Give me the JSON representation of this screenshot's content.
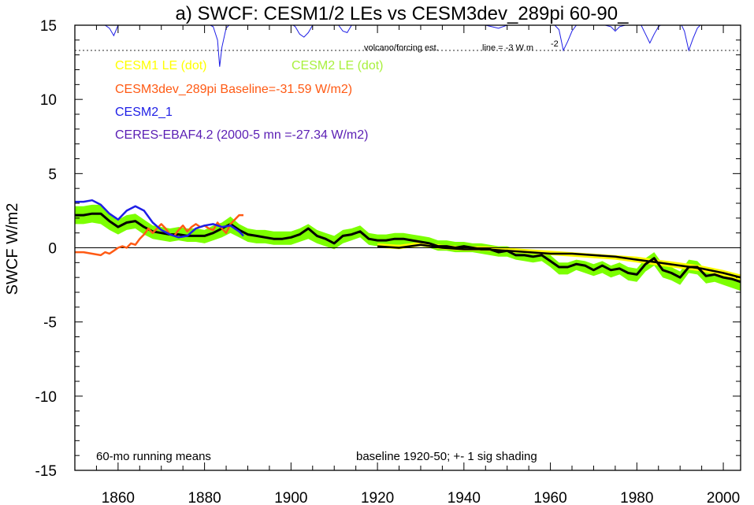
{
  "chart_data": {
    "type": "line",
    "title": "a) SWCF: CESM1/2 LEs vs CESM3dev_289pi 60-90_",
    "xlabel": "",
    "ylabel": "SWCF W/m2",
    "xlim": [
      1850,
      2004
    ],
    "ylim": [
      -15,
      15
    ],
    "xticks": [
      1860,
      1880,
      1900,
      1920,
      1940,
      1960,
      1980,
      2000
    ],
    "yticks": [
      -15,
      -10,
      -5,
      0,
      5,
      10,
      15
    ],
    "legend": [
      {
        "label": "CESM1 LE (dot)",
        "color": "#ffff00"
      },
      {
        "label": "CESM2 LE (dot)",
        "color": "#a8f03c"
      },
      {
        "label": "CESM3dev_289pi Baseline=-31.59 W/m2)",
        "color": "#ff5a14"
      },
      {
        "label": "CESM2_1",
        "color": "#1e1ee6"
      },
      {
        "label": "CERES-EBAF4.2 (2000-5 mn =-27.34 W/m2)",
        "color": "#5a1eb4"
      }
    ],
    "annotations": {
      "volcano_label": "volcano/forcing est.",
      "line_label": "line = -3 W m",
      "line_label_sup": "-2",
      "left_note": "60-mo running means",
      "right_note": "baseline 1920-50; +- 1 sig shading"
    },
    "series": [
      {
        "name": "CESM2 LE (dot)",
        "style": "band",
        "color": "#7cff00",
        "x": [
          1850,
          1852,
          1854,
          1856,
          1858,
          1860,
          1862,
          1864,
          1866,
          1868,
          1870,
          1872,
          1874,
          1876,
          1878,
          1880,
          1882,
          1884,
          1886,
          1888,
          1890,
          1892,
          1894,
          1896,
          1898,
          1900,
          1902,
          1904,
          1906,
          1908,
          1910,
          1912,
          1914,
          1916,
          1918,
          1920,
          1922,
          1924,
          1926,
          1928,
          1930,
          1932,
          1934,
          1936,
          1938,
          1940,
          1942,
          1944,
          1946,
          1948,
          1950,
          1952,
          1954,
          1956,
          1958,
          1960,
          1962,
          1964,
          1966,
          1968,
          1970,
          1972,
          1974,
          1976,
          1978,
          1980,
          1982,
          1984,
          1986,
          1988,
          1990,
          1992,
          1994,
          1996,
          1998,
          2000,
          2002,
          2004
        ],
        "lower": [
          1.6,
          1.6,
          1.7,
          1.6,
          1.2,
          0.9,
          1.2,
          1.3,
          0.9,
          0.6,
          0.5,
          0.4,
          0.5,
          0.4,
          0.4,
          0.3,
          0.5,
          0.7,
          1.0,
          0.7,
          0.4,
          0.3,
          0.3,
          0.2,
          0.2,
          0.2,
          0.4,
          0.6,
          0.3,
          0.1,
          -0.1,
          0.3,
          0.5,
          0.7,
          0.2,
          0.1,
          0.1,
          0.2,
          0.2,
          0.1,
          0.1,
          0.0,
          -0.2,
          -0.2,
          -0.3,
          -0.3,
          -0.3,
          -0.4,
          -0.5,
          -0.6,
          -0.6,
          -0.8,
          -0.9,
          -1.0,
          -0.9,
          -1.3,
          -1.8,
          -1.8,
          -1.5,
          -1.7,
          -1.9,
          -1.7,
          -2.0,
          -1.8,
          -2.2,
          -2.3,
          -1.6,
          -1.2,
          -2.0,
          -2.2,
          -2.5,
          -1.7,
          -1.8,
          -2.4,
          -2.3,
          -2.5,
          -2.7,
          -2.9
        ],
        "upper": [
          2.8,
          2.8,
          2.9,
          2.9,
          2.3,
          1.9,
          2.2,
          2.3,
          1.9,
          1.5,
          1.4,
          1.3,
          1.4,
          1.3,
          1.3,
          1.2,
          1.5,
          1.7,
          2.1,
          1.6,
          1.3,
          1.2,
          1.2,
          1.1,
          1.1,
          1.1,
          1.3,
          1.6,
          1.2,
          1.0,
          0.8,
          1.2,
          1.3,
          1.5,
          1.0,
          0.9,
          0.9,
          1.0,
          1.0,
          0.9,
          0.8,
          0.7,
          0.5,
          0.5,
          0.4,
          0.4,
          0.3,
          0.3,
          0.2,
          0.1,
          0.1,
          -0.1,
          -0.2,
          -0.3,
          -0.2,
          -0.5,
          -1.0,
          -1.0,
          -0.8,
          -0.9,
          -1.1,
          -0.9,
          -1.2,
          -1.0,
          -1.3,
          -1.4,
          -0.7,
          -0.3,
          -1.1,
          -1.3,
          -1.6,
          -0.8,
          -0.9,
          -1.5,
          -1.4,
          -1.6,
          -1.8,
          -2.0
        ]
      },
      {
        "name": "CESM1 LE (dot)",
        "style": "band",
        "color": "#ffff00",
        "x": [
          1920,
          1925,
          1930,
          1935,
          1940,
          1945,
          1950,
          1955,
          1960,
          1965,
          1970,
          1975,
          1980,
          1985,
          1990,
          1995,
          2000,
          2004
        ],
        "lower": [
          0.0,
          -0.1,
          0.1,
          -0.1,
          -0.2,
          -0.2,
          -0.3,
          -0.4,
          -0.5,
          -0.6,
          -0.7,
          -0.8,
          -1.0,
          -1.2,
          -1.4,
          -1.6,
          -1.9,
          -2.2
        ],
        "upper": [
          0.3,
          0.2,
          0.4,
          0.2,
          0.1,
          0.1,
          0.0,
          -0.1,
          -0.2,
          -0.3,
          -0.4,
          -0.5,
          -0.6,
          -0.8,
          -1.0,
          -1.2,
          -1.5,
          -1.8
        ]
      },
      {
        "name": "CESM1 LE mean",
        "style": "line",
        "color": "#000000",
        "width": 2.5,
        "x": [
          1920,
          1925,
          1930,
          1935,
          1940,
          1945,
          1950,
          1955,
          1960,
          1965,
          1970,
          1975,
          1980,
          1985,
          1990,
          1995,
          2000,
          2004
        ],
        "y": [
          0.1,
          0.0,
          0.2,
          0.0,
          -0.1,
          -0.1,
          -0.2,
          -0.3,
          -0.4,
          -0.4,
          -0.5,
          -0.6,
          -0.8,
          -1.0,
          -1.2,
          -1.4,
          -1.7,
          -2.0
        ]
      },
      {
        "name": "CESM2 LE mean",
        "style": "line",
        "color": "#000000",
        "width": 3,
        "x": [
          1850,
          1852,
          1854,
          1856,
          1858,
          1860,
          1862,
          1864,
          1866,
          1868,
          1870,
          1872,
          1874,
          1876,
          1878,
          1880,
          1882,
          1884,
          1886,
          1888,
          1890,
          1892,
          1894,
          1896,
          1898,
          1900,
          1902,
          1904,
          1906,
          1908,
          1910,
          1912,
          1914,
          1916,
          1918,
          1920,
          1922,
          1924,
          1926,
          1928,
          1930,
          1932,
          1934,
          1936,
          1938,
          1940,
          1942,
          1944,
          1946,
          1948,
          1950,
          1952,
          1954,
          1956,
          1958,
          1960,
          1962,
          1964,
          1966,
          1968,
          1970,
          1972,
          1974,
          1976,
          1978,
          1980,
          1982,
          1984,
          1986,
          1988,
          1990,
          1992,
          1994,
          1996,
          1998,
          2000,
          2002,
          2004
        ],
        "y": [
          2.2,
          2.2,
          2.3,
          2.3,
          1.8,
          1.4,
          1.7,
          1.8,
          1.4,
          1.1,
          1.0,
          0.9,
          0.9,
          0.8,
          0.8,
          0.8,
          1.0,
          1.3,
          1.6,
          1.2,
          0.9,
          0.8,
          0.7,
          0.6,
          0.6,
          0.7,
          0.9,
          1.3,
          0.8,
          0.6,
          0.3,
          0.8,
          0.9,
          1.1,
          0.6,
          0.5,
          0.5,
          0.6,
          0.6,
          0.5,
          0.4,
          0.3,
          0.1,
          0.1,
          0.0,
          0.1,
          0.0,
          -0.1,
          -0.1,
          -0.3,
          -0.2,
          -0.5,
          -0.5,
          -0.6,
          -0.5,
          -0.9,
          -1.3,
          -1.3,
          -1.1,
          -1.2,
          -1.5,
          -1.2,
          -1.5,
          -1.4,
          -1.7,
          -1.8,
          -1.1,
          -0.7,
          -1.5,
          -1.7,
          -2.0,
          -1.3,
          -1.3,
          -1.9,
          -1.8,
          -2.0,
          -2.1,
          -2.3
        ]
      },
      {
        "name": "CESM3dev_289pi Baseline=-31.59 W/m2)",
        "style": "line",
        "color": "#ff5a14",
        "width": 2.5,
        "x": [
          1850,
          1852,
          1854,
          1856,
          1857,
          1858,
          1859,
          1860,
          1861,
          1862,
          1863,
          1864,
          1865,
          1866,
          1867,
          1868,
          1869,
          1870,
          1871,
          1872,
          1873,
          1874,
          1875,
          1876,
          1877,
          1878,
          1879,
          1880,
          1881,
          1882,
          1883,
          1884,
          1885,
          1886,
          1887,
          1888,
          1889
        ],
        "y": [
          -0.3,
          -0.3,
          -0.4,
          -0.5,
          -0.3,
          -0.4,
          -0.2,
          0.0,
          0.1,
          0.0,
          0.3,
          0.2,
          0.6,
          0.9,
          1.3,
          1.0,
          1.3,
          1.6,
          1.3,
          0.9,
          0.8,
          1.2,
          1.5,
          1.1,
          1.4,
          1.6,
          1.4,
          1.5,
          1.3,
          1.2,
          1.7,
          1.3,
          1.0,
          1.6,
          1.9,
          2.2,
          2.2
        ]
      },
      {
        "name": "CESM2_1",
        "style": "line",
        "color": "#1e1ee6",
        "width": 2.5,
        "x": [
          1850,
          1852,
          1854,
          1856,
          1858,
          1860,
          1862,
          1864,
          1866,
          1868,
          1870,
          1872,
          1874,
          1876,
          1878,
          1880,
          1882,
          1884,
          1886,
          1888,
          1889
        ],
        "y": [
          3.1,
          3.1,
          3.2,
          2.9,
          2.3,
          1.9,
          2.5,
          2.8,
          2.5,
          1.7,
          1.2,
          0.9,
          0.7,
          0.8,
          1.3,
          1.5,
          1.6,
          1.4,
          1.5,
          1.1,
          0.8
        ]
      }
    ],
    "forcing_trace": {
      "name": "volcano/forcing est.",
      "color": "#1e1ee6",
      "baseline_y": 15.2,
      "x": [
        1850,
        1855,
        1857,
        1858,
        1859,
        1860,
        1865,
        1870,
        1875,
        1880,
        1882,
        1883,
        1883.5,
        1884,
        1885,
        1886,
        1890,
        1900,
        1901,
        1902,
        1903,
        1904,
        1905,
        1910,
        1911,
        1912,
        1913,
        1914,
        1920,
        1930,
        1935,
        1940,
        1945,
        1948,
        1950,
        1955,
        1960,
        1961,
        1962,
        1963,
        1964,
        1965,
        1966,
        1970,
        1974,
        1975,
        1976,
        1980,
        1981,
        1982,
        1983,
        1984,
        1985,
        1986,
        1990,
        1991,
        1992,
        1993,
        1994,
        1995,
        2000,
        2004
      ],
      "y": [
        15.2,
        15.2,
        15.0,
        14.8,
        14.3,
        15.0,
        15.1,
        15.2,
        15.1,
        15.2,
        14.9,
        14.0,
        12.2,
        13.5,
        14.8,
        15.1,
        15.2,
        15.1,
        14.9,
        14.4,
        14.2,
        14.5,
        15.0,
        15.2,
        15.0,
        14.6,
        14.5,
        15.0,
        15.2,
        15.2,
        15.1,
        15.2,
        15.0,
        14.8,
        15.0,
        15.2,
        15.2,
        15.0,
        14.7,
        13.3,
        13.9,
        14.6,
        15.0,
        15.2,
        14.9,
        14.6,
        14.9,
        15.2,
        15.0,
        14.4,
        13.8,
        14.4,
        14.9,
        15.1,
        15.2,
        14.6,
        13.3,
        14.1,
        14.8,
        15.1,
        15.2,
        15.2
      ]
    },
    "reference_lines": [
      {
        "name": "volcano reference line",
        "y": 13.3,
        "style": "dotted",
        "color": "#555555"
      },
      {
        "name": "zero line",
        "y": 0,
        "style": "solid",
        "color": "#000000"
      }
    ]
  }
}
